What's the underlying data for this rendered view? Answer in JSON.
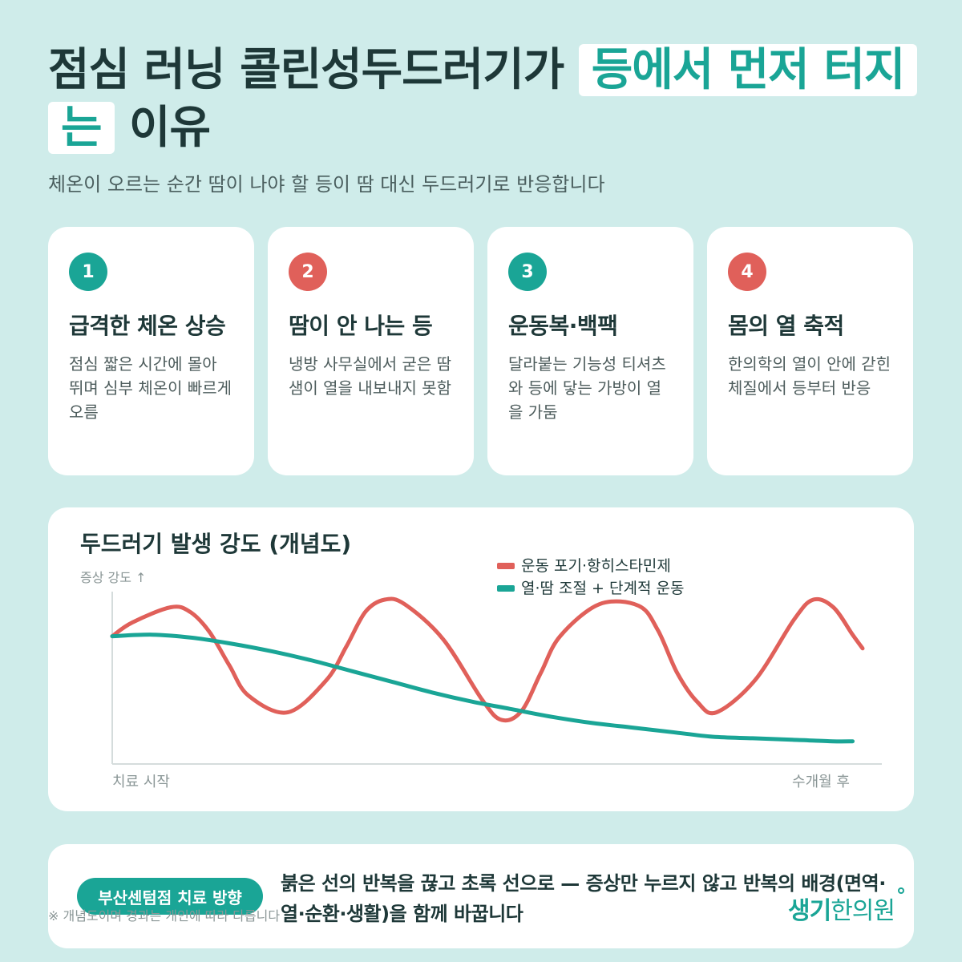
{
  "title": {
    "part1": "점심 러닝 콜린성두드러기가 ",
    "highlight1": "등에서 먼저 터지",
    "highlight2": "는",
    "part2": " 이유"
  },
  "subtitle": "체온이 오르는 순간 땀이 나야 할 등이 땀 대신 두드러기로 반응합니다",
  "colors": {
    "teal": "#1aa596",
    "red": "#e0605a",
    "background": "#cfecea"
  },
  "cards": [
    {
      "number": "1",
      "color": "teal",
      "title": "급격한 체온 상승",
      "body": "점심 짧은 시간에 몰아 뛰며 심부 체온이 빠르게 오름"
    },
    {
      "number": "2",
      "color": "red",
      "title": "땀이 안 나는 등",
      "body": "냉방 사무실에서 굳은 땀샘이 열을 내보내지 못함"
    },
    {
      "number": "3",
      "color": "teal",
      "title": "운동복·백팩",
      "body": "달라붙는 기능성 티셔츠와 등에 닿는 가방이 열을 가둠"
    },
    {
      "number": "4",
      "color": "red",
      "title": "몸의 열 축적",
      "body": "한의학의 열이 안에 갇힌 체질에서 등부터 반응"
    }
  ],
  "chart_data": {
    "type": "line",
    "title": "두드러기 발생 강도 (개념도)",
    "ylabel": "증상 강도 ↑",
    "xlabel_start": "치료 시작",
    "xlabel_end": "수개월 후",
    "ylim": [
      0,
      100
    ],
    "xlim": [
      0,
      100
    ],
    "legend_position": "top-right",
    "grid": false,
    "series": [
      {
        "name": "운동 포기·항히스타민제",
        "color": "#e0605a",
        "x": [
          0,
          2.6,
          7.6,
          10.1,
          12.6,
          15.2,
          17.7,
          22.8,
          27.8,
          30.4,
          32.9,
          35.4,
          38.0,
          43.0,
          48.1,
          50.6,
          53.2,
          55.7,
          58.2,
          63.3,
          68.4,
          70.9,
          73.4,
          76.0,
          78.5,
          83.5,
          88.6,
          91.1,
          93.7,
          96.2,
          97.5
        ],
        "y": [
          76,
          85,
          95,
          92,
          79,
          57,
          37,
          26,
          47,
          69,
          92,
          100,
          97,
          74,
          34,
          21,
          27,
          52,
          76,
          97,
          96,
          80,
          52,
          33,
          26,
          47,
          87,
          100,
          95,
          77,
          68
        ]
      },
      {
        "name": "열·땀 조절 + 단계적 운동",
        "color": "#1aa596",
        "x": [
          0,
          5.2,
          10.4,
          15.6,
          20.8,
          26.0,
          31.2,
          36.4,
          41.6,
          46.8,
          52.0,
          57.2,
          62.4,
          67.6,
          72.8,
          78.0,
          83.2,
          88.4,
          93.6,
          96.2
        ],
        "y": [
          76,
          77,
          75,
          71,
          66,
          60,
          53,
          46,
          39,
          33,
          28,
          23,
          19,
          16,
          13,
          10,
          9,
          8,
          7,
          7
        ]
      }
    ]
  },
  "bottom": {
    "pill": "부산센텀점 치료 방향",
    "message": "붉은 선의 반복을 끊고 초록 선으로 — 증상만 누르지 않고 반복의 배경(면역·열·순환·생활)을 함께 바꿉니다",
    "note": "※ 개념도이며 경과는 개인에 따라 다릅니다",
    "logo_bold": "생기",
    "logo_rest": "한의원"
  }
}
